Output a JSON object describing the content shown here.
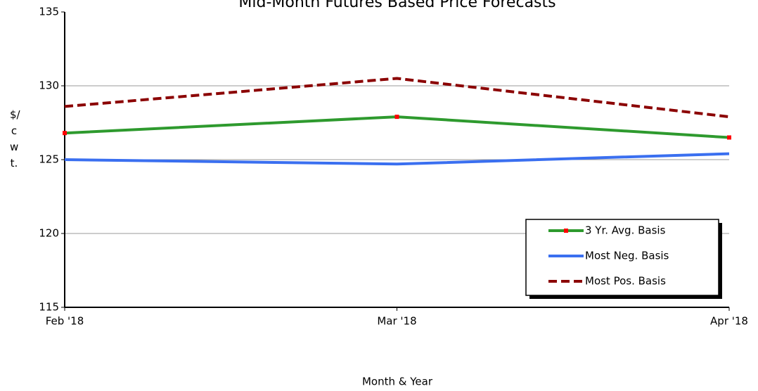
{
  "chart_data": {
    "type": "line",
    "title": "Mid-Month Futures Based Price Forecasts",
    "x_label": "Month & Year",
    "y_label": "$/cwt.",
    "categories": [
      "Feb '18",
      "Mar '18",
      "Apr '18"
    ],
    "series": [
      {
        "name": "3 Yr. Avg. Basis",
        "color": "#2e9a2e",
        "marker_color": "#ff0000",
        "dash": false,
        "values": [
          126.8,
          127.9,
          126.5
        ]
      },
      {
        "name": "Most Neg. Basis",
        "color": "#3a6ff0",
        "dash": false,
        "values": [
          125.0,
          124.7,
          125.4
        ]
      },
      {
        "name": "Most Pos. Basis",
        "color": "#8b0000",
        "dash": true,
        "values": [
          128.6,
          130.5,
          127.9
        ]
      }
    ],
    "ylim": [
      115,
      135
    ],
    "yticks": [
      115,
      120,
      125,
      130,
      135
    ],
    "grid": true,
    "legend": "lower right"
  }
}
